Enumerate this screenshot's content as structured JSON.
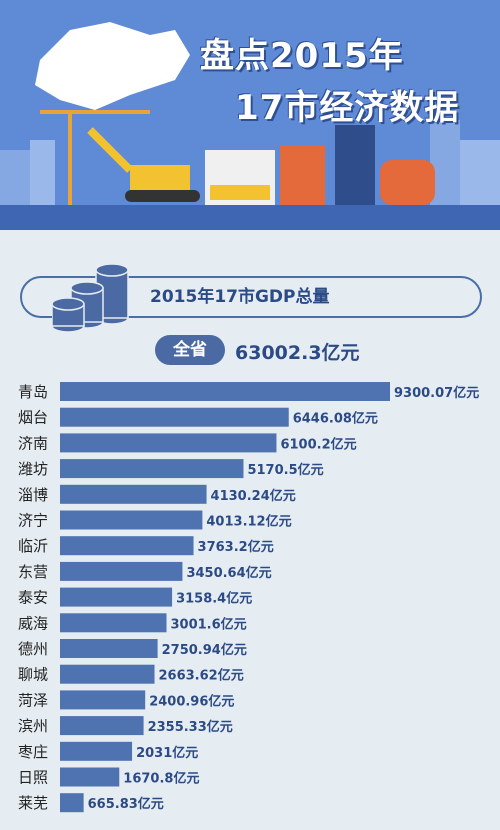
{
  "banner": {
    "title_line1": "盘点2015年",
    "title_line2": "17市经济数据"
  },
  "header": {
    "label": "2015年17市GDP总量"
  },
  "total": {
    "badge": "全省",
    "value": "63002.3亿元"
  },
  "colors": {
    "bar": "#4f72b0",
    "label": "#2b4a86",
    "banner": "#5f8ad6",
    "city": "#222222"
  },
  "chart_data": {
    "type": "bar",
    "orientation": "horizontal",
    "unit": "亿元",
    "categories": [
      "青岛",
      "烟台",
      "济南",
      "潍坊",
      "淄博",
      "济宁",
      "临沂",
      "东营",
      "泰安",
      "威海",
      "德州",
      "聊城",
      "菏泽",
      "滨州",
      "枣庄",
      "日照",
      "莱芜"
    ],
    "values": [
      9300.07,
      6446.08,
      6100.2,
      5170.5,
      4130.24,
      4013.12,
      3763.2,
      3450.64,
      3158.4,
      3001.6,
      2750.94,
      2663.62,
      2400.96,
      2355.33,
      2031,
      1670.8,
      665.83
    ],
    "value_labels": [
      "9300.07亿元",
      "6446.08亿元",
      "6100.2亿元",
      "5170.5亿元",
      "4130.24亿元",
      "4013.12亿元",
      "3763.2亿元",
      "3450.64亿元",
      "3158.4亿元",
      "3001.6亿元",
      "2750.94亿元",
      "2663.62亿元",
      "2400.96亿元",
      "2355.33亿元",
      "2031亿元",
      "1670.8亿元",
      "665.83亿元"
    ],
    "title": "2015年17市GDP总量"
  }
}
